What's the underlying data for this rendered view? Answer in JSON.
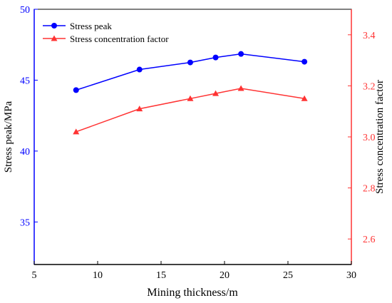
{
  "chart_data": {
    "type": "line",
    "xlabel": "Mining thickness/m",
    "ylabel": "Stress peak/MPa",
    "y2label": "Stress concentration factor",
    "xlim": [
      5,
      30
    ],
    "ylim": [
      32,
      50
    ],
    "y2lim": [
      2.5,
      3.5
    ],
    "xticks": [
      "5",
      "10",
      "15",
      "20",
      "25",
      "30"
    ],
    "yticks": [
      "35",
      "40",
      "45",
      "50"
    ],
    "y2ticks": [
      "2.6",
      "2.8",
      "3.0",
      "3.2",
      "3.4"
    ],
    "grid": false,
    "legend_position": "top-left",
    "series": [
      {
        "name": "Stress peak",
        "axis": "left",
        "color": "#0000ff",
        "marker": "circle",
        "x": [
          8.3,
          13.3,
          17.3,
          19.3,
          21.3,
          26.3
        ],
        "y": [
          44.3,
          45.75,
          46.25,
          46.6,
          46.85,
          46.3
        ]
      },
      {
        "name": "Stress concentration factor",
        "axis": "right",
        "color": "#ff3333",
        "marker": "triangle",
        "x": [
          8.3,
          13.3,
          17.3,
          19.3,
          21.3,
          26.3
        ],
        "y": [
          3.02,
          3.11,
          3.15,
          3.17,
          3.19,
          3.15
        ]
      }
    ]
  }
}
